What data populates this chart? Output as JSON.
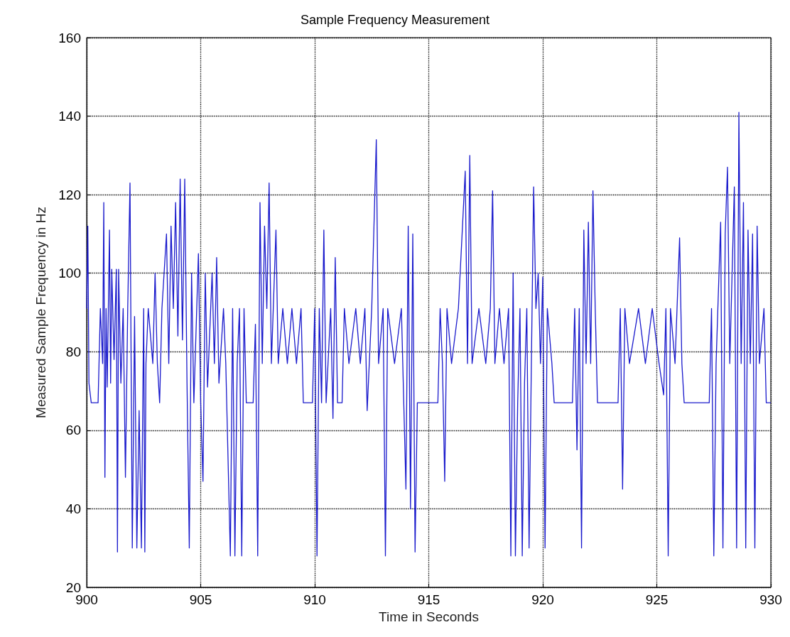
{
  "chart_data": {
    "type": "line",
    "title": "Sample Frequency Measurement",
    "xlabel": "Time in Seconds",
    "ylabel": "Measured Sample Frequency in Hz",
    "xlim": [
      900,
      930
    ],
    "xticks": [
      900,
      905,
      910,
      915,
      920,
      925,
      930
    ],
    "ylim": [
      20,
      160
    ],
    "yticks": [
      20,
      40,
      60,
      80,
      100,
      120,
      140,
      160
    ],
    "grid": true,
    "marker": "none",
    "line_style": "solid",
    "series": [
      {
        "color": "#1a1acc",
        "x": [
          900.0,
          900.05,
          900.1,
          900.2,
          900.5,
          900.6,
          900.7,
          900.75,
          900.8,
          900.85,
          900.9,
          901.0,
          901.05,
          901.1,
          901.2,
          901.3,
          901.35,
          901.4,
          901.5,
          901.6,
          901.7,
          901.8,
          901.9,
          902.0,
          902.1,
          902.2,
          902.3,
          902.4,
          902.5,
          902.55,
          902.6,
          902.7,
          902.9,
          903.0,
          903.1,
          903.2,
          903.3,
          903.5,
          903.6,
          903.7,
          903.8,
          903.9,
          904.0,
          904.1,
          904.2,
          904.3,
          904.4,
          904.5,
          904.6,
          904.7,
          904.9,
          905.0,
          905.1,
          905.2,
          905.3,
          905.5,
          905.6,
          905.7,
          905.8,
          906.0,
          906.1,
          906.3,
          906.4,
          906.5,
          906.6,
          906.7,
          906.8,
          906.9,
          907.0,
          907.3,
          907.4,
          907.5,
          907.6,
          907.7,
          907.8,
          907.9,
          908.0,
          908.1,
          908.3,
          908.4,
          908.6,
          908.8,
          909.0,
          909.2,
          909.4,
          909.5,
          909.9,
          910.0,
          910.1,
          910.2,
          910.3,
          910.4,
          910.5,
          910.7,
          910.8,
          910.9,
          911.0,
          911.2,
          911.3,
          911.5,
          911.8,
          912.0,
          912.2,
          912.3,
          912.5,
          912.7,
          912.8,
          913.0,
          913.1,
          913.2,
          913.5,
          913.8,
          914.0,
          914.1,
          914.2,
          914.3,
          914.4,
          914.5,
          914.9,
          915.4,
          915.5,
          915.6,
          915.7,
          915.8,
          916.0,
          916.3,
          916.6,
          916.7,
          916.8,
          916.9,
          917.2,
          917.5,
          917.7,
          917.8,
          917.9,
          918.1,
          918.3,
          918.5,
          918.6,
          918.7,
          918.8,
          918.9,
          919.0,
          919.1,
          919.2,
          919.3,
          919.4,
          919.5,
          919.6,
          919.7,
          919.8,
          919.9,
          920.0,
          920.1,
          920.2,
          920.4,
          920.5,
          921.3,
          921.4,
          921.5,
          921.6,
          921.7,
          921.8,
          921.9,
          922.0,
          922.1,
          922.2,
          922.3,
          922.4,
          923.3,
          923.4,
          923.5,
          923.6,
          923.8,
          924.2,
          924.5,
          924.8,
          925.1,
          925.3,
          925.4,
          925.5,
          925.6,
          925.8,
          926.0,
          926.1,
          926.2,
          927.3,
          927.4,
          927.5,
          927.6,
          927.8,
          927.9,
          928.0,
          928.1,
          928.2,
          928.4,
          928.5,
          928.6,
          928.7,
          928.8,
          928.9,
          929.0,
          929.1,
          929.2,
          929.3,
          929.4,
          929.5,
          929.7,
          929.8,
          930.0
        ],
        "values": [
          91,
          112,
          72,
          67,
          67,
          91,
          77,
          118,
          48,
          91,
          71,
          111,
          72,
          101,
          78,
          101,
          29,
          101,
          72,
          91,
          48,
          91,
          123,
          30,
          89,
          30,
          65,
          30,
          91,
          29,
          77,
          91,
          77,
          100,
          77,
          67,
          91,
          110,
          77,
          112,
          91,
          118,
          84,
          124,
          83,
          124,
          72,
          30,
          100,
          67,
          105,
          67,
          47,
          100,
          71,
          100,
          77,
          104,
          72,
          91,
          77,
          28,
          91,
          28,
          77,
          91,
          28,
          91,
          67,
          67,
          87,
          28,
          118,
          77,
          112,
          91,
          123,
          77,
          111,
          77,
          91,
          77,
          91,
          77,
          91,
          67,
          67,
          91,
          28,
          91,
          67,
          111,
          67,
          91,
          63,
          104,
          67,
          67,
          91,
          77,
          91,
          77,
          91,
          65,
          91,
          134,
          77,
          91,
          28,
          91,
          77,
          91,
          45,
          112,
          40,
          110,
          29,
          67,
          67,
          67,
          91,
          77,
          47,
          91,
          77,
          91,
          126,
          77,
          130,
          77,
          91,
          77,
          91,
          121,
          77,
          91,
          77,
          91,
          28,
          100,
          28,
          67,
          91,
          28,
          72,
          91,
          30,
          77,
          122,
          91,
          100,
          77,
          99,
          30,
          91,
          77,
          67,
          67,
          91,
          55,
          91,
          30,
          111,
          77,
          113,
          77,
          121,
          91,
          67,
          67,
          91,
          45,
          91,
          77,
          91,
          77,
          91,
          77,
          69,
          91,
          28,
          91,
          77,
          109,
          77,
          67,
          67,
          91,
          28,
          77,
          113,
          30,
          110,
          127,
          77,
          122,
          30,
          141,
          77,
          118,
          30,
          111,
          77,
          110,
          30,
          112,
          77,
          91,
          67,
          67
        ]
      }
    ]
  }
}
